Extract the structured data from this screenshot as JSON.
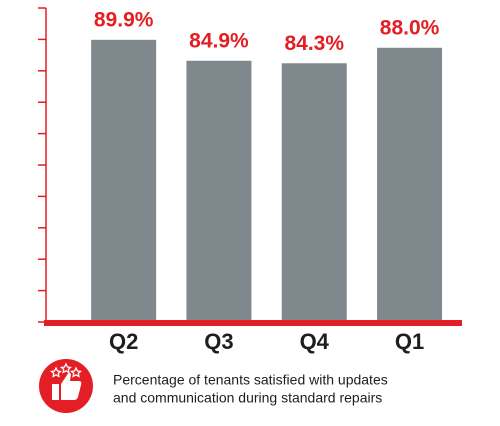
{
  "chart_data": {
    "type": "bar",
    "categories": [
      "Q2",
      "Q3",
      "Q4",
      "Q1"
    ],
    "values": [
      89.9,
      84.9,
      84.3,
      88.0
    ],
    "value_labels": [
      "89.9%",
      "84.9%",
      "84.3%",
      "88.0%"
    ],
    "color": "#7f898d",
    "axis_color": "#e31e24",
    "ylim": [
      22.5,
      97.5
    ],
    "yticks": [
      22.5,
      30,
      37.5,
      45,
      52.5,
      60,
      67.5,
      75,
      82.5,
      90,
      97.5
    ],
    "caption": [
      "Percentage of tenants satisfied with updates",
      "and communication during standard repairs"
    ]
  }
}
